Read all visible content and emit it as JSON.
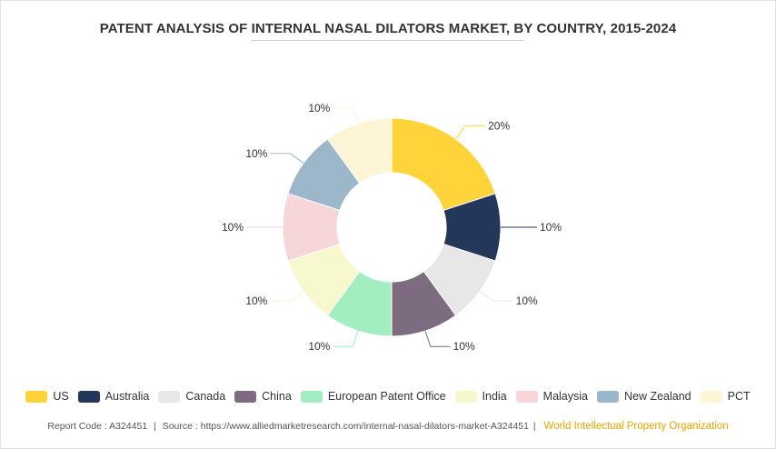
{
  "title": "PATENT ANALYSIS OF INTERNAL NASAL DILATORS MARKET, BY COUNTRY, 2015-2024",
  "chart_data": {
    "type": "pie",
    "donut": true,
    "categories": [
      "US",
      "Australia",
      "Canada",
      "China",
      "European Patent Office",
      "India",
      "Malaysia",
      "New Zealand",
      "PCT"
    ],
    "values": [
      20,
      10,
      10,
      10,
      10,
      10,
      10,
      10,
      10
    ],
    "labels": [
      "20%",
      "10%",
      "10%",
      "10%",
      "10%",
      "10%",
      "10%",
      "10%",
      "10%"
    ],
    "colors": [
      "#ffd43b",
      "#24375a",
      "#e7e7e7",
      "#7d6b80",
      "#a2eec0",
      "#f8f8ce",
      "#f6d6d8",
      "#9db7ca",
      "#fef5d6"
    ],
    "legend_position": "bottom"
  },
  "footer": {
    "report_code_label": "Report Code : A324451",
    "separator": "|",
    "source_label": "Source : https://www.alliedmarketresearch.com/internal-nasal-dilators-market-A324451",
    "organization": "World Intellectual Property Organization"
  }
}
